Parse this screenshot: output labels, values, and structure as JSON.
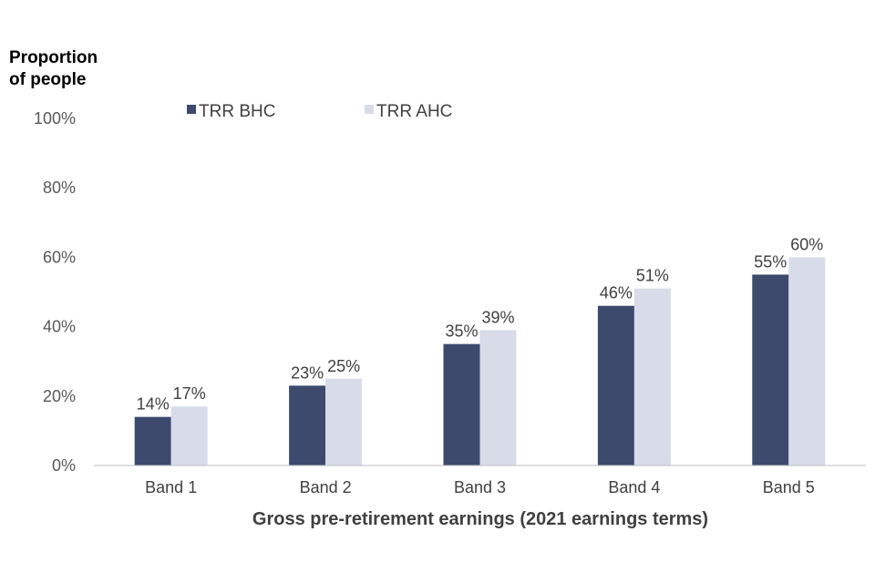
{
  "chart_data": {
    "type": "bar",
    "ylabel_lines": [
      "Proportion",
      "of people"
    ],
    "xlabel": "Gross pre-retirement earnings  (2021 earnings terms)",
    "categories": [
      "Band 1",
      "Band 2",
      "Band 3",
      "Band 4",
      "Band 5"
    ],
    "series": [
      {
        "name": "TRR BHC",
        "color": "#3d4a6e",
        "values": [
          14,
          23,
          35,
          46,
          55
        ],
        "labels": [
          "14%",
          "23%",
          "35%",
          "46%",
          "55%"
        ]
      },
      {
        "name": "TRR AHC",
        "color": "#d8dce9",
        "values": [
          17,
          25,
          39,
          51,
          60
        ],
        "labels": [
          "17%",
          "25%",
          "39%",
          "51%",
          "60%"
        ]
      }
    ],
    "ylim": [
      0,
      100
    ],
    "yticks": [
      0,
      20,
      40,
      60,
      80,
      100
    ],
    "ytick_labels": [
      "0%",
      "20%",
      "40%",
      "60%",
      "80%",
      "100%"
    ],
    "grid": false,
    "legend_position": "top"
  }
}
